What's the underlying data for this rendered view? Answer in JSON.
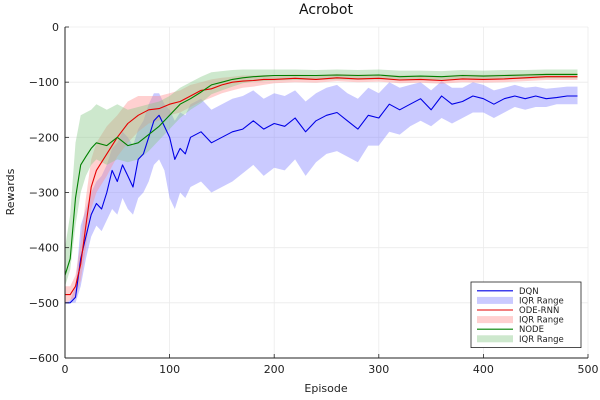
{
  "chart_data": {
    "type": "line",
    "title": "Acrobot",
    "xlabel": "Episode",
    "ylabel": "Rewards",
    "xlim": [
      0,
      500
    ],
    "ylim": [
      -600,
      0
    ],
    "xticks": [
      0,
      100,
      200,
      300,
      400,
      500
    ],
    "yticks": [
      0,
      -100,
      -200,
      -300,
      -400,
      -500,
      -600
    ],
    "grid": true,
    "legend_position": "bottom-right",
    "series": [
      {
        "name": "DQN",
        "band_name": "IQR Range",
        "color": "#0000e6",
        "band_color": "#8080ff",
        "x": [
          0,
          5,
          10,
          15,
          20,
          25,
          30,
          35,
          40,
          45,
          50,
          55,
          60,
          65,
          70,
          75,
          80,
          85,
          90,
          95,
          100,
          105,
          110,
          115,
          120,
          130,
          140,
          150,
          160,
          170,
          180,
          190,
          200,
          210,
          220,
          230,
          240,
          250,
          260,
          270,
          280,
          290,
          300,
          310,
          320,
          330,
          340,
          350,
          360,
          370,
          380,
          390,
          400,
          410,
          420,
          430,
          440,
          450,
          460,
          470,
          480,
          490
        ],
        "y": [
          -500,
          -500,
          -490,
          -420,
          -380,
          -340,
          -320,
          -330,
          -300,
          -260,
          -280,
          -250,
          -270,
          -290,
          -240,
          -230,
          -200,
          -170,
          -160,
          -180,
          -200,
          -240,
          -220,
          -230,
          -200,
          -190,
          -210,
          -200,
          -190,
          -185,
          -170,
          -185,
          -175,
          -180,
          -165,
          -190,
          -170,
          -160,
          -155,
          -170,
          -185,
          -160,
          -165,
          -140,
          -150,
          -140,
          -130,
          -150,
          -125,
          -140,
          -135,
          -125,
          -130,
          -140,
          -130,
          -125,
          -130,
          -125,
          -130,
          -128,
          -125,
          -125
        ],
        "lower": [
          -500,
          -500,
          -500,
          -470,
          -420,
          -380,
          -360,
          -370,
          -350,
          -330,
          -340,
          -310,
          -330,
          -340,
          -310,
          -300,
          -280,
          -250,
          -240,
          -260,
          -310,
          -330,
          -300,
          -310,
          -290,
          -280,
          -300,
          -290,
          -280,
          -265,
          -250,
          -270,
          -255,
          -260,
          -240,
          -270,
          -245,
          -230,
          -225,
          -235,
          -245,
          -215,
          -215,
          -190,
          -195,
          -180,
          -170,
          -180,
          -165,
          -175,
          -165,
          -155,
          -155,
          -165,
          -155,
          -145,
          -150,
          -145,
          -145,
          -140,
          -140,
          -140
        ],
        "upper": [
          -500,
          -495,
          -470,
          -360,
          -330,
          -300,
          -280,
          -270,
          -250,
          -220,
          -210,
          -190,
          -200,
          -215,
          -185,
          -170,
          -140,
          -120,
          -120,
          -140,
          -150,
          -170,
          -155,
          -160,
          -140,
          -130,
          -150,
          -140,
          -130,
          -125,
          -115,
          -130,
          -120,
          -125,
          -115,
          -135,
          -120,
          -110,
          -105,
          -120,
          -130,
          -110,
          -120,
          -100,
          -110,
          -105,
          -100,
          -115,
          -98,
          -110,
          -110,
          -100,
          -105,
          -115,
          -110,
          -105,
          -110,
          -108,
          -112,
          -110,
          -108,
          -108
        ]
      },
      {
        "name": "ODE-RNN",
        "band_name": "IQR Range",
        "color": "#e60000",
        "band_color": "#ff9090",
        "x": [
          0,
          5,
          10,
          15,
          20,
          25,
          30,
          40,
          50,
          60,
          70,
          80,
          90,
          100,
          110,
          120,
          130,
          140,
          150,
          160,
          170,
          180,
          190,
          200,
          220,
          240,
          260,
          280,
          300,
          320,
          340,
          360,
          380,
          400,
          420,
          440,
          460,
          480,
          490
        ],
        "y": [
          -485,
          -485,
          -470,
          -430,
          -360,
          -290,
          -260,
          -230,
          -200,
          -175,
          -160,
          -150,
          -148,
          -140,
          -135,
          -125,
          -115,
          -112,
          -105,
          -100,
          -98,
          -97,
          -95,
          -95,
          -93,
          -95,
          -92,
          -94,
          -93,
          -96,
          -95,
          -97,
          -94,
          -95,
          -94,
          -92,
          -90,
          -90,
          -90
        ],
        "lower": [
          -500,
          -495,
          -490,
          -460,
          -400,
          -330,
          -300,
          -270,
          -235,
          -210,
          -190,
          -175,
          -170,
          -160,
          -155,
          -145,
          -135,
          -128,
          -120,
          -115,
          -110,
          -108,
          -105,
          -102,
          -100,
          -101,
          -98,
          -100,
          -99,
          -102,
          -101,
          -103,
          -100,
          -101,
          -100,
          -98,
          -96,
          -96,
          -96
        ],
        "upper": [
          -470,
          -470,
          -450,
          -390,
          -310,
          -240,
          -210,
          -180,
          -160,
          -135,
          -125,
          -125,
          -125,
          -120,
          -115,
          -105,
          -100,
          -95,
          -92,
          -90,
          -88,
          -88,
          -87,
          -87,
          -86,
          -87,
          -85,
          -86,
          -86,
          -88,
          -88,
          -89,
          -86,
          -87,
          -86,
          -85,
          -84,
          -84,
          -84
        ]
      },
      {
        "name": "NODE",
        "band_name": "IQR Range",
        "color": "#008000",
        "band_color": "#88c888",
        "x": [
          0,
          5,
          10,
          15,
          20,
          25,
          30,
          40,
          50,
          60,
          70,
          80,
          90,
          100,
          110,
          120,
          130,
          140,
          150,
          160,
          170,
          180,
          190,
          200,
          220,
          240,
          260,
          280,
          300,
          320,
          340,
          360,
          380,
          400,
          420,
          440,
          460,
          480,
          490
        ],
        "y": [
          -450,
          -420,
          -310,
          -250,
          -235,
          -220,
          -210,
          -215,
          -200,
          -215,
          -210,
          -195,
          -180,
          -160,
          -140,
          -130,
          -118,
          -105,
          -100,
          -95,
          -92,
          -90,
          -89,
          -88,
          -88,
          -88,
          -87,
          -88,
          -87,
          -90,
          -89,
          -90,
          -88,
          -89,
          -88,
          -87,
          -86,
          -86,
          -86
        ],
        "lower": [
          -470,
          -440,
          -360,
          -300,
          -270,
          -250,
          -240,
          -250,
          -240,
          -245,
          -240,
          -225,
          -205,
          -185,
          -165,
          -150,
          -138,
          -122,
          -115,
          -108,
          -102,
          -99,
          -98,
          -97,
          -96,
          -96,
          -95,
          -96,
          -95,
          -97,
          -96,
          -97,
          -95,
          -96,
          -95,
          -94,
          -93,
          -93,
          -93
        ],
        "upper": [
          -400,
          -340,
          -210,
          -160,
          -155,
          -150,
          -140,
          -150,
          -140,
          -150,
          -145,
          -140,
          -135,
          -125,
          -110,
          -100,
          -90,
          -82,
          -80,
          -78,
          -77,
          -77,
          -77,
          -77,
          -77,
          -78,
          -77,
          -78,
          -77,
          -79,
          -79,
          -80,
          -78,
          -79,
          -78,
          -78,
          -77,
          -77,
          -77
        ]
      }
    ]
  }
}
